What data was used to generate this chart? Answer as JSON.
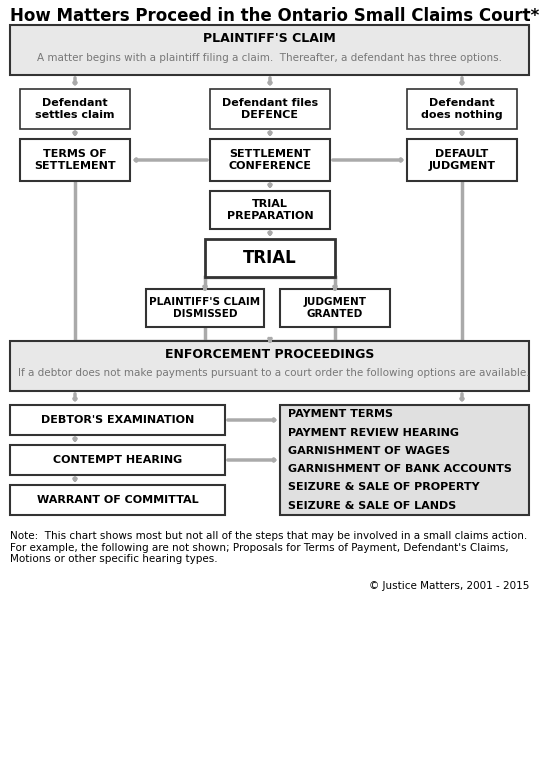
{
  "title": "How Matters Proceed in the Ontario Small Claims Court*",
  "bg": "#ffffff",
  "box_light": "#e8e8e8",
  "box_white": "#ffffff",
  "border_dark": "#222222",
  "border_light": "#555555",
  "arrow_color": "#aaaaaa",
  "text_dark": "#000000",
  "text_gray": "#666666",
  "text_blue": "#0000cc",
  "note_text": "Note:  This chart shows most but not all of the steps that may be involved in a small claims action.\nFor example, the following are not shown; Proposals for Terms of Payment, Defendant's Claims,\nMotions or other specific hearing types.",
  "copyright": "© Justice Matters, 2001 - 2015",
  "enforce_pre": "If a debtor does not make payments ",
  "enforce_blue": "pursuant",
  "enforce_post": " to a court order the following options are available.",
  "right_items": [
    "PAYMENT TERMS",
    "PAYMENT REVIEW HEARING",
    "GARNISHMENT OF WAGES",
    "GARNISHMENT OF BANK ACCOUNTS",
    "SEIZURE & SALE OF PROPERTY",
    "SEIZURE & SALE OF LANDS"
  ]
}
